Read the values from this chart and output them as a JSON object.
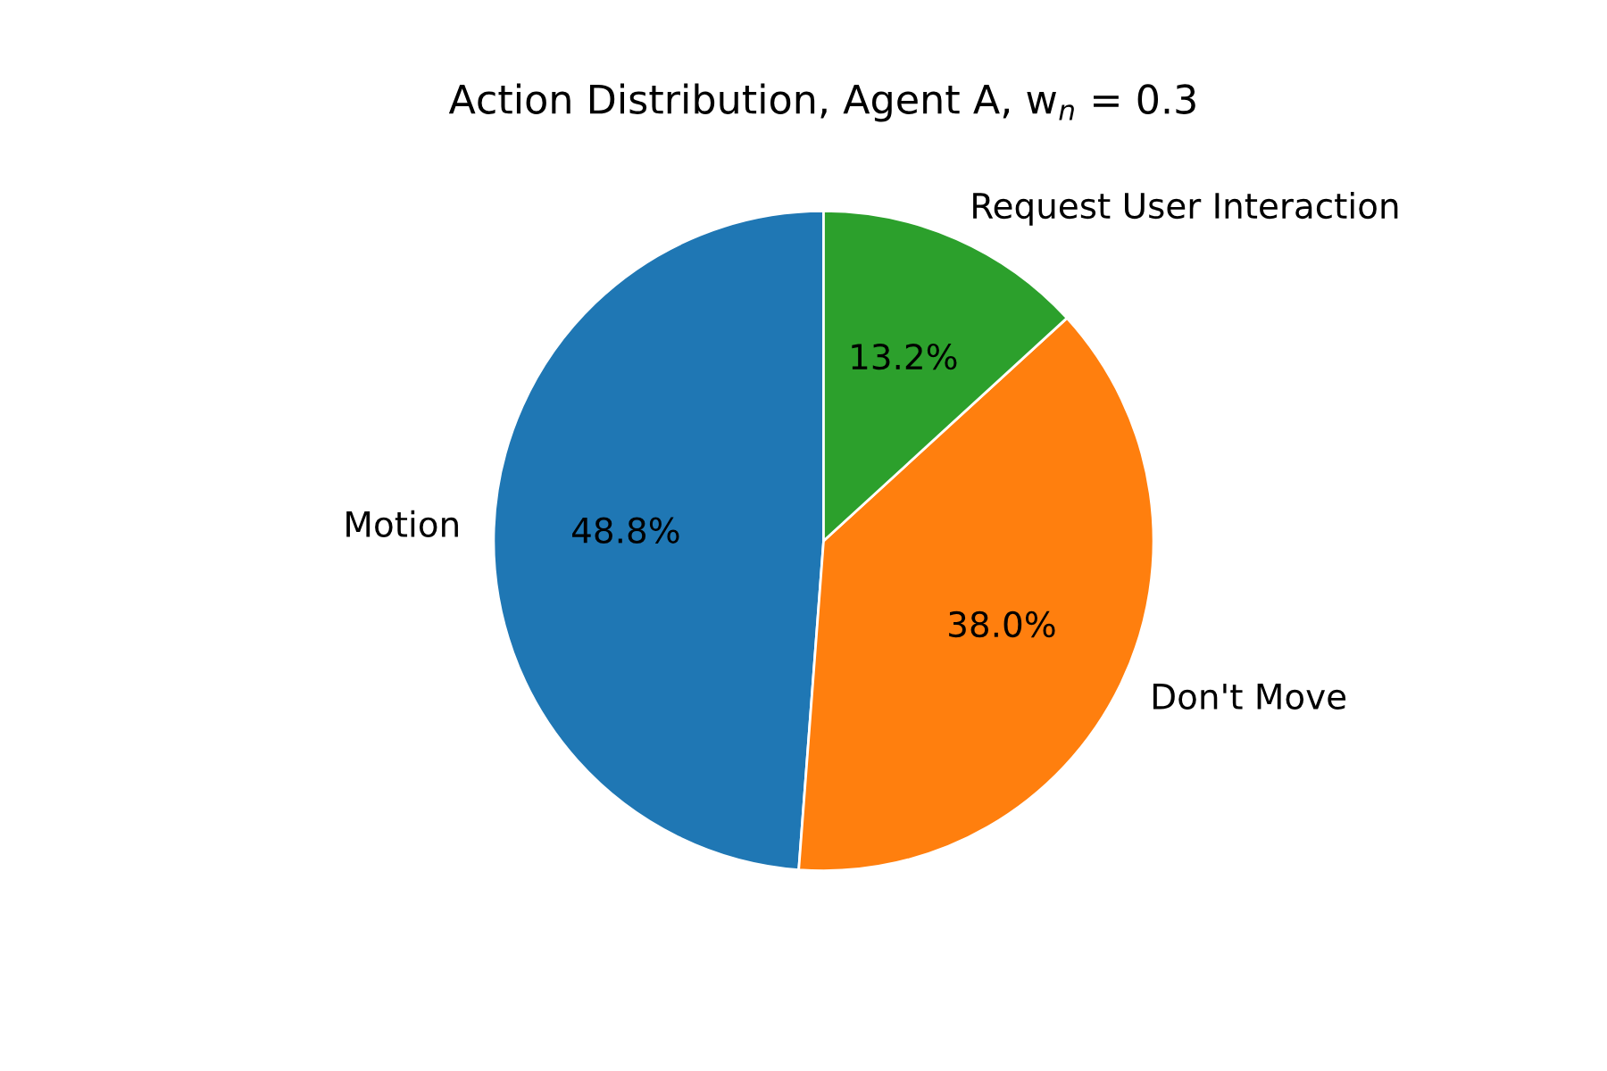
{
  "chart_data": {
    "type": "pie",
    "title": "Action Distribution, Agent A, w$_{n}$ = 0.3",
    "categories": [
      "Motion",
      "Don't Move",
      "Request User Interaction"
    ],
    "values": [
      48.8,
      38.0,
      13.2
    ],
    "colors": [
      "#1f77b4",
      "#ff7f0e",
      "#2ca02c"
    ],
    "value_labels": [
      "48.8%",
      "38.0%",
      "13.2%"
    ],
    "legend": false
  }
}
